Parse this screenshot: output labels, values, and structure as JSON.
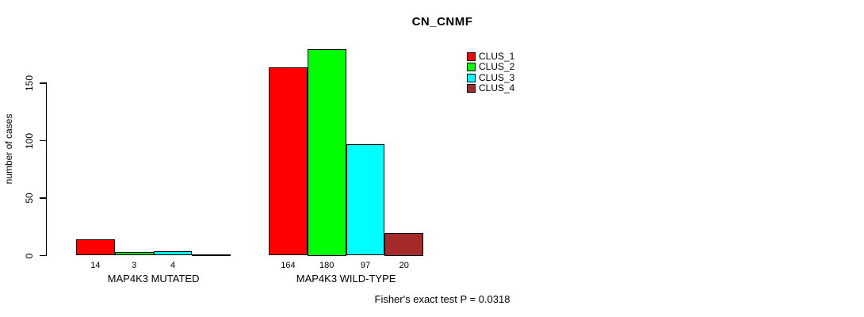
{
  "chart_data": {
    "type": "bar",
    "title": "CN_CNMF",
    "ylabel": "number of cases",
    "xlabel": "",
    "annotation": "Fisher's exact test P = 0.0318",
    "categories": [
      "MAP4K3 MUTATED",
      "MAP4K3 WILD-TYPE"
    ],
    "series": [
      {
        "name": "CLUS_1",
        "color": "#ff0000",
        "values": [
          14,
          164
        ]
      },
      {
        "name": "CLUS_2",
        "color": "#00ff00",
        "values": [
          3,
          180
        ]
      },
      {
        "name": "CLUS_3",
        "color": "#00ffff",
        "values": [
          4,
          97
        ]
      },
      {
        "name": "CLUS_4",
        "color": "#a52a2a",
        "values": [
          0,
          20
        ]
      }
    ],
    "bar_value_labels": [
      [
        "14",
        "3",
        "4",
        ""
      ],
      [
        "164",
        "180",
        "97",
        "20"
      ]
    ],
    "yticks": [
      0,
      50,
      100,
      150
    ],
    "ylim": [
      0,
      185
    ],
    "grid": false,
    "legend_position": "top-right",
    "axis_color": "#000000",
    "bar_border_color": "#000000"
  }
}
